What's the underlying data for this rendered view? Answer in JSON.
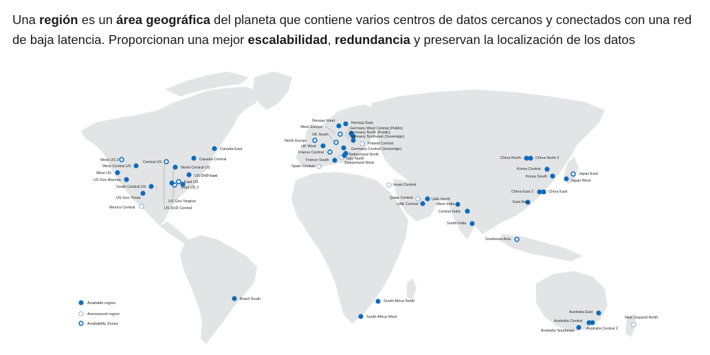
{
  "intro": {
    "p1": "Una ",
    "b1": "región",
    "p2": " es un ",
    "b2": "área geográfica",
    "p3": " del planeta que contiene varios centros de datos cercanos y conectados con una red de baja latencia. Proporcionan una mejor ",
    "b3": "escalabilidad",
    "p4": ", ",
    "b4": "redundancia",
    "p5": " y preservan la localización de los datos"
  },
  "colors": {
    "available": "#0f6cbd",
    "land": "#e3e4e6",
    "leader": "#8a8a8a"
  },
  "legend": [
    {
      "type": "available",
      "label": "Available region"
    },
    {
      "type": "announced",
      "label": "Announced region"
    },
    {
      "type": "zones",
      "label": "Availability Zones"
    }
  ],
  "regions": [
    {
      "name": "West US 2",
      "type": "zones"
    },
    {
      "name": "West Central US",
      "type": "available"
    },
    {
      "name": "West US",
      "type": "available"
    },
    {
      "name": "US Gov Arizona",
      "type": "available"
    },
    {
      "name": "Central US",
      "type": "zones"
    },
    {
      "name": "North Central US",
      "type": "available"
    },
    {
      "name": "Canada Central",
      "type": "available"
    },
    {
      "name": "Canada East",
      "type": "available"
    },
    {
      "name": "US DoD East",
      "type": "available"
    },
    {
      "name": "East US",
      "type": "zones"
    },
    {
      "name": "East US 2",
      "type": "zones"
    },
    {
      "name": "South Central US",
      "type": "available"
    },
    {
      "name": "US Gov Texas",
      "type": "available"
    },
    {
      "name": "US Gov Virginia",
      "type": "available"
    },
    {
      "name": "US DoD Central",
      "type": "available"
    },
    {
      "name": "Mexico Central",
      "type": "announced"
    },
    {
      "name": "Brazil South",
      "type": "available"
    },
    {
      "name": "Norway West",
      "type": "available"
    },
    {
      "name": "Norway East",
      "type": "available"
    },
    {
      "name": "West Europe",
      "type": "zones"
    },
    {
      "name": "Germany West Central (Public)",
      "type": "available"
    },
    {
      "name": "Germany North (Public)",
      "type": "available"
    },
    {
      "name": "Germany Northeast (Sovereign)",
      "type": "available"
    },
    {
      "name": "UK South",
      "type": "zones"
    },
    {
      "name": "Poland Central",
      "type": "announced"
    },
    {
      "name": "North Europe",
      "type": "zones"
    },
    {
      "name": "UK West",
      "type": "available"
    },
    {
      "name": "Germany Central (Sovereign)",
      "type": "available"
    },
    {
      "name": "France Central",
      "type": "zones"
    },
    {
      "name": "Switzerland North",
      "type": "available"
    },
    {
      "name": "Italy North",
      "type": "announced"
    },
    {
      "name": "France South",
      "type": "available"
    },
    {
      "name": "Switzerland West",
      "type": "available"
    },
    {
      "name": "Spain Central",
      "type": "announced"
    },
    {
      "name": "Israel Central",
      "type": "announced"
    },
    {
      "name": "Qatar Central",
      "type": "announced"
    },
    {
      "name": "UAE North",
      "type": "available"
    },
    {
      "name": "UAE Central",
      "type": "available"
    },
    {
      "name": "West India",
      "type": "available"
    },
    {
      "name": "Central India",
      "type": "available"
    },
    {
      "name": "South India",
      "type": "available"
    },
    {
      "name": "South Africa North",
      "type": "available"
    },
    {
      "name": "South Africa West",
      "type": "available"
    },
    {
      "name": "China North",
      "type": "available"
    },
    {
      "name": "China North 2",
      "type": "available"
    },
    {
      "name": "Korea Central",
      "type": "available"
    },
    {
      "name": "Korea South",
      "type": "available"
    },
    {
      "name": "Japan East",
      "type": "zones"
    },
    {
      "name": "Japan West",
      "type": "available"
    },
    {
      "name": "China East 2",
      "type": "available"
    },
    {
      "name": "China East",
      "type": "available"
    },
    {
      "name": "East Asia",
      "type": "available"
    },
    {
      "name": "Southeast Asia",
      "type": "zones"
    },
    {
      "name": "Australia East",
      "type": "available"
    },
    {
      "name": "Australia Central",
      "type": "available"
    },
    {
      "name": "Australia Central 2",
      "type": "available"
    },
    {
      "name": "Australia Southeast",
      "type": "available"
    },
    {
      "name": "New Zealand North",
      "type": "announced"
    }
  ]
}
